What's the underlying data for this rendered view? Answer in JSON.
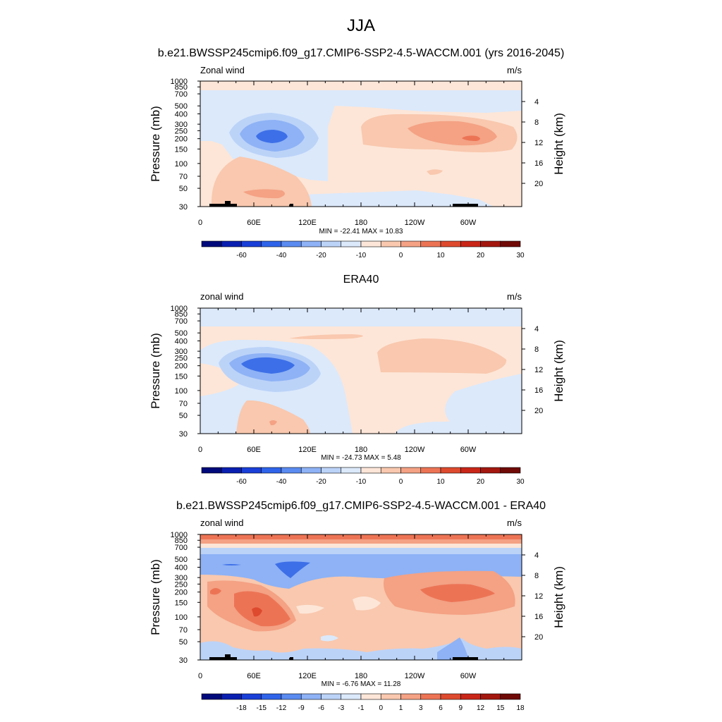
{
  "page": {
    "title": "JJA"
  },
  "colors": {
    "diff_bar": [
      "#000a7a",
      "#0a1fb0",
      "#1a3fd8",
      "#2f64ea",
      "#5a8bf0",
      "#8eb2f5",
      "#bcd3f8",
      "#dbe9fb",
      "#fde6d8",
      "#f9c8ae",
      "#f4a184",
      "#ec7455",
      "#de4a2e",
      "#c92618",
      "#a3170f",
      "#6f0a06"
    ],
    "field_bar": [
      "#000a7a",
      "#0a1fb0",
      "#1a3fd8",
      "#2f64ea",
      "#5a8bf0",
      "#8eb2f5",
      "#bcd3f8",
      "#dbe9fb",
      "#fde6d8",
      "#f9c8ae",
      "#f4a184",
      "#ec7455",
      "#de4a2e",
      "#c92618",
      "#a3170f",
      "#6f0a06"
    ],
    "terrain": "#000000"
  },
  "chart_data": [
    {
      "type": "heatmap",
      "title": "b.e21.BWSSP245cmip6.f09_g17.CMIP6-SSP2-4.5-WACCM.001 (yrs 2016-2045)",
      "left_label": "Zonal wind",
      "right_label": "m/s",
      "ylabel": "Pressure (mb)",
      "ylabel_right": "Height (km)",
      "x_ticks": [
        "0",
        "60E",
        "120E",
        "180",
        "120W",
        "60W"
      ],
      "y_ticks": [
        "30",
        "50",
        "70",
        "100",
        "150",
        "200",
        "250",
        "300",
        "400",
        "500",
        "700",
        "850",
        "1000"
      ],
      "height_ticks": [
        "20",
        "16",
        "12",
        "8",
        "4"
      ],
      "stats": "MIN = -22.41  MAX =  10.83",
      "min": -22.41,
      "max": 10.83,
      "colorbar_labels": [
        "-60",
        "-40",
        "-20",
        "-10",
        "0",
        "10",
        "20",
        "30"
      ],
      "colorbar_levels": [
        -70,
        -60,
        -50,
        -40,
        -30,
        -20,
        -15,
        -10,
        -5,
        0,
        5,
        10,
        15,
        20,
        25,
        30
      ],
      "xlim": [
        0,
        360
      ],
      "ylim": [
        1000,
        30
      ]
    },
    {
      "type": "heatmap",
      "title": "ERA40",
      "left_label": "zonal wind",
      "right_label": "m/s",
      "ylabel": "Pressure (mb)",
      "ylabel_right": "Height (km)",
      "x_ticks": [
        "0",
        "60E",
        "120E",
        "180",
        "120W",
        "60W"
      ],
      "y_ticks": [
        "30",
        "50",
        "70",
        "100",
        "150",
        "200",
        "250",
        "300",
        "400",
        "500",
        "700",
        "850",
        "1000"
      ],
      "height_ticks": [
        "20",
        "16",
        "12",
        "8",
        "4"
      ],
      "stats": "MIN = -24.73  MAX =   5.48",
      "min": -24.73,
      "max": 5.48,
      "colorbar_labels": [
        "-60",
        "-40",
        "-20",
        "-10",
        "0",
        "10",
        "20",
        "30"
      ],
      "colorbar_levels": [
        -70,
        -60,
        -50,
        -40,
        -30,
        -20,
        -15,
        -10,
        -5,
        0,
        5,
        10,
        15,
        20,
        25,
        30
      ],
      "xlim": [
        0,
        360
      ],
      "ylim": [
        1000,
        30
      ]
    },
    {
      "type": "heatmap",
      "title": "b.e21.BWSSP245cmip6.f09_g17.CMIP6-SSP2-4.5-WACCM.001 - ERA40",
      "left_label": "zonal wind",
      "right_label": "m/s",
      "ylabel": "Pressure (mb)",
      "ylabel_right": "Height (km)",
      "x_ticks": [
        "0",
        "60E",
        "120E",
        "180",
        "120W",
        "60W"
      ],
      "y_ticks": [
        "30",
        "50",
        "70",
        "100",
        "150",
        "200",
        "250",
        "300",
        "400",
        "500",
        "700",
        "850",
        "1000"
      ],
      "height_ticks": [
        "20",
        "16",
        "12",
        "8",
        "4"
      ],
      "stats": "MIN =  -6.76  MAX =  11.28",
      "min": -6.76,
      "max": 11.28,
      "colorbar_labels": [
        "-18",
        "-15",
        "-12",
        "-9",
        "-6",
        "-3",
        "-1",
        "0",
        "1",
        "3",
        "6",
        "9",
        "12",
        "15",
        "18"
      ],
      "colorbar_levels": [
        -21,
        -18,
        -15,
        -12,
        -9,
        -6,
        -3,
        -1,
        0,
        1,
        3,
        6,
        9,
        12,
        15,
        18
      ],
      "xlim": [
        0,
        360
      ],
      "ylim": [
        1000,
        30
      ]
    }
  ]
}
